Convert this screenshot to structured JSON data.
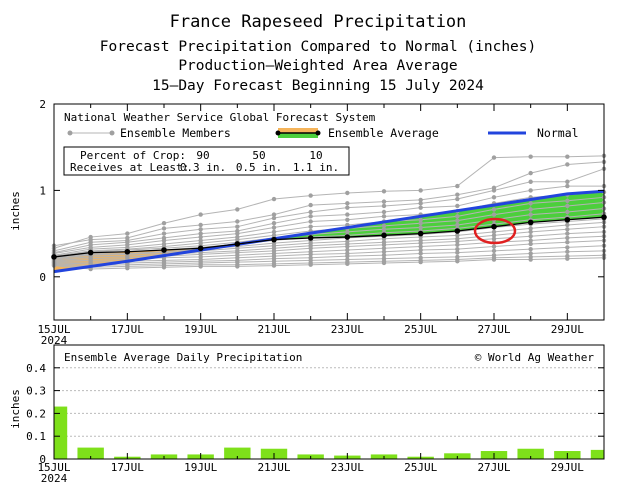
{
  "titles": {
    "line1": "France Rapeseed Precipitation",
    "line2": "Forecast Precipitation Compared to Normal (inches)",
    "line3": "Production—Weighted Area Average",
    "line4": "15—Day Forecast Beginning 15 July 2024"
  },
  "colors": {
    "normal": "#2244dd",
    "ensemble_avg": "#000000",
    "members": "#b4b4b4",
    "above_normal": "#f5b45a",
    "below_normal": "#4ccf3c",
    "daily_bar": "#7ee01a",
    "highlight": "#e02020"
  },
  "chart_data": [
    {
      "type": "line",
      "title": "National Weather Service Global Forecast System",
      "ylabel": "inches",
      "ylim": [
        -0.5,
        2
      ],
      "yticks": [
        0,
        1,
        2
      ],
      "x": [
        0,
        1,
        2,
        3,
        4,
        5,
        6,
        7,
        8,
        9,
        10,
        11,
        12,
        13,
        14,
        15
      ],
      "x_tick_labels": [
        {
          "x": 0,
          "label": "15JUL",
          "sub": "2024"
        },
        {
          "x": 2,
          "label": "17JUL"
        },
        {
          "x": 4,
          "label": "19JUL"
        },
        {
          "x": 6,
          "label": "21JUL"
        },
        {
          "x": 8,
          "label": "23JUL"
        },
        {
          "x": 10,
          "label": "25JUL"
        },
        {
          "x": 12,
          "label": "27JUL"
        },
        {
          "x": 14,
          "label": "29JUL"
        }
      ],
      "legend": {
        "members": "Ensemble Members",
        "average": "Ensemble Average",
        "normal": "Normal"
      },
      "crop_box": {
        "row1_label": "Percent of Crop:",
        "row2_label": "Receives at Least:",
        "columns": [
          {
            "pct": "90",
            "amt": "0.3 in."
          },
          {
            "pct": "50",
            "amt": "0.5 in."
          },
          {
            "pct": "10",
            "amt": "1.1 in."
          }
        ]
      },
      "series": [
        {
          "name": "Normal",
          "values": [
            0.06,
            0.12,
            0.18,
            0.245,
            0.31,
            0.375,
            0.44,
            0.505,
            0.57,
            0.635,
            0.7,
            0.765,
            0.83,
            0.895,
            0.96,
            0.99
          ]
        },
        {
          "name": "Ensemble Average",
          "values": [
            0.23,
            0.28,
            0.29,
            0.31,
            0.33,
            0.38,
            0.43,
            0.45,
            0.46,
            0.48,
            0.5,
            0.53,
            0.58,
            0.63,
            0.66,
            0.69
          ]
        }
      ],
      "members": [
        [
          0.33,
          0.46,
          0.5,
          0.62,
          0.72,
          0.78,
          0.9,
          0.94,
          0.97,
          0.99,
          1.0,
          1.05,
          1.38,
          1.39,
          1.39,
          1.4
        ],
        [
          0.36,
          0.43,
          0.45,
          0.56,
          0.6,
          0.64,
          0.72,
          0.83,
          0.85,
          0.87,
          0.89,
          0.95,
          1.03,
          1.2,
          1.3,
          1.33
        ],
        [
          0.3,
          0.4,
          0.42,
          0.5,
          0.55,
          0.58,
          0.68,
          0.75,
          0.8,
          0.82,
          0.85,
          0.9,
          1.0,
          1.1,
          1.1,
          1.25
        ],
        [
          0.28,
          0.37,
          0.4,
          0.45,
          0.5,
          0.53,
          0.62,
          0.7,
          0.72,
          0.75,
          0.8,
          0.82,
          0.92,
          1.0,
          1.05,
          1.05
        ],
        [
          0.27,
          0.34,
          0.37,
          0.42,
          0.46,
          0.5,
          0.57,
          0.64,
          0.66,
          0.7,
          0.72,
          0.76,
          0.85,
          0.92,
          0.95,
          0.98
        ],
        [
          0.25,
          0.32,
          0.34,
          0.38,
          0.42,
          0.46,
          0.52,
          0.58,
          0.6,
          0.64,
          0.66,
          0.7,
          0.78,
          0.85,
          0.88,
          0.92
        ],
        [
          0.24,
          0.3,
          0.32,
          0.35,
          0.39,
          0.43,
          0.48,
          0.53,
          0.56,
          0.59,
          0.62,
          0.65,
          0.72,
          0.78,
          0.82,
          0.86
        ],
        [
          0.23,
          0.29,
          0.31,
          0.33,
          0.36,
          0.4,
          0.45,
          0.49,
          0.52,
          0.55,
          0.57,
          0.6,
          0.66,
          0.72,
          0.75,
          0.79
        ],
        [
          0.22,
          0.27,
          0.29,
          0.31,
          0.34,
          0.38,
          0.42,
          0.46,
          0.48,
          0.51,
          0.53,
          0.56,
          0.61,
          0.66,
          0.69,
          0.73
        ],
        [
          0.22,
          0.26,
          0.27,
          0.29,
          0.32,
          0.35,
          0.39,
          0.42,
          0.45,
          0.47,
          0.49,
          0.52,
          0.57,
          0.61,
          0.64,
          0.67
        ],
        [
          0.21,
          0.25,
          0.26,
          0.28,
          0.3,
          0.33,
          0.36,
          0.39,
          0.41,
          0.44,
          0.46,
          0.48,
          0.52,
          0.56,
          0.6,
          0.63
        ],
        [
          0.2,
          0.23,
          0.24,
          0.26,
          0.28,
          0.3,
          0.33,
          0.36,
          0.38,
          0.4,
          0.42,
          0.44,
          0.48,
          0.52,
          0.55,
          0.58
        ],
        [
          0.19,
          0.21,
          0.22,
          0.24,
          0.26,
          0.28,
          0.3,
          0.33,
          0.35,
          0.37,
          0.39,
          0.41,
          0.44,
          0.47,
          0.5,
          0.52
        ],
        [
          0.18,
          0.19,
          0.2,
          0.22,
          0.23,
          0.25,
          0.27,
          0.29,
          0.31,
          0.33,
          0.35,
          0.37,
          0.4,
          0.42,
          0.45,
          0.47
        ],
        [
          0.17,
          0.17,
          0.18,
          0.19,
          0.2,
          0.22,
          0.24,
          0.26,
          0.27,
          0.29,
          0.31,
          0.32,
          0.35,
          0.38,
          0.4,
          0.42
        ],
        [
          0.16,
          0.15,
          0.16,
          0.17,
          0.18,
          0.19,
          0.21,
          0.22,
          0.24,
          0.25,
          0.27,
          0.28,
          0.3,
          0.32,
          0.34,
          0.36
        ],
        [
          0.15,
          0.13,
          0.14,
          0.15,
          0.16,
          0.17,
          0.18,
          0.19,
          0.2,
          0.21,
          0.22,
          0.23,
          0.25,
          0.27,
          0.29,
          0.3
        ],
        [
          0.14,
          0.11,
          0.12,
          0.13,
          0.14,
          0.14,
          0.15,
          0.16,
          0.17,
          0.18,
          0.19,
          0.2,
          0.22,
          0.23,
          0.24,
          0.25
        ],
        [
          0.13,
          0.09,
          0.1,
          0.11,
          0.12,
          0.12,
          0.13,
          0.14,
          0.15,
          0.16,
          0.17,
          0.18,
          0.2,
          0.2,
          0.21,
          0.22
        ]
      ],
      "highlight_circle_at": {
        "x": 12,
        "y": 0.53
      }
    },
    {
      "type": "bar",
      "title": "Ensemble Average Daily Precipitation",
      "credit": "© World Ag Weather",
      "ylabel": "inches",
      "ylim": [
        0,
        0.5
      ],
      "yticks": [
        0,
        0.1,
        0.2,
        0.3,
        0.4
      ],
      "ytick_labels": [
        "0",
        "0.1",
        "0.2",
        "0.3",
        "0.4"
      ],
      "x": [
        0,
        1,
        2,
        3,
        4,
        5,
        6,
        7,
        8,
        9,
        10,
        11,
        12,
        13,
        14,
        15
      ],
      "values": [
        0.23,
        0.05,
        0.01,
        0.02,
        0.02,
        0.05,
        0.045,
        0.02,
        0.015,
        0.02,
        0.01,
        0.025,
        0.035,
        0.045,
        0.035,
        0.04
      ]
    }
  ]
}
